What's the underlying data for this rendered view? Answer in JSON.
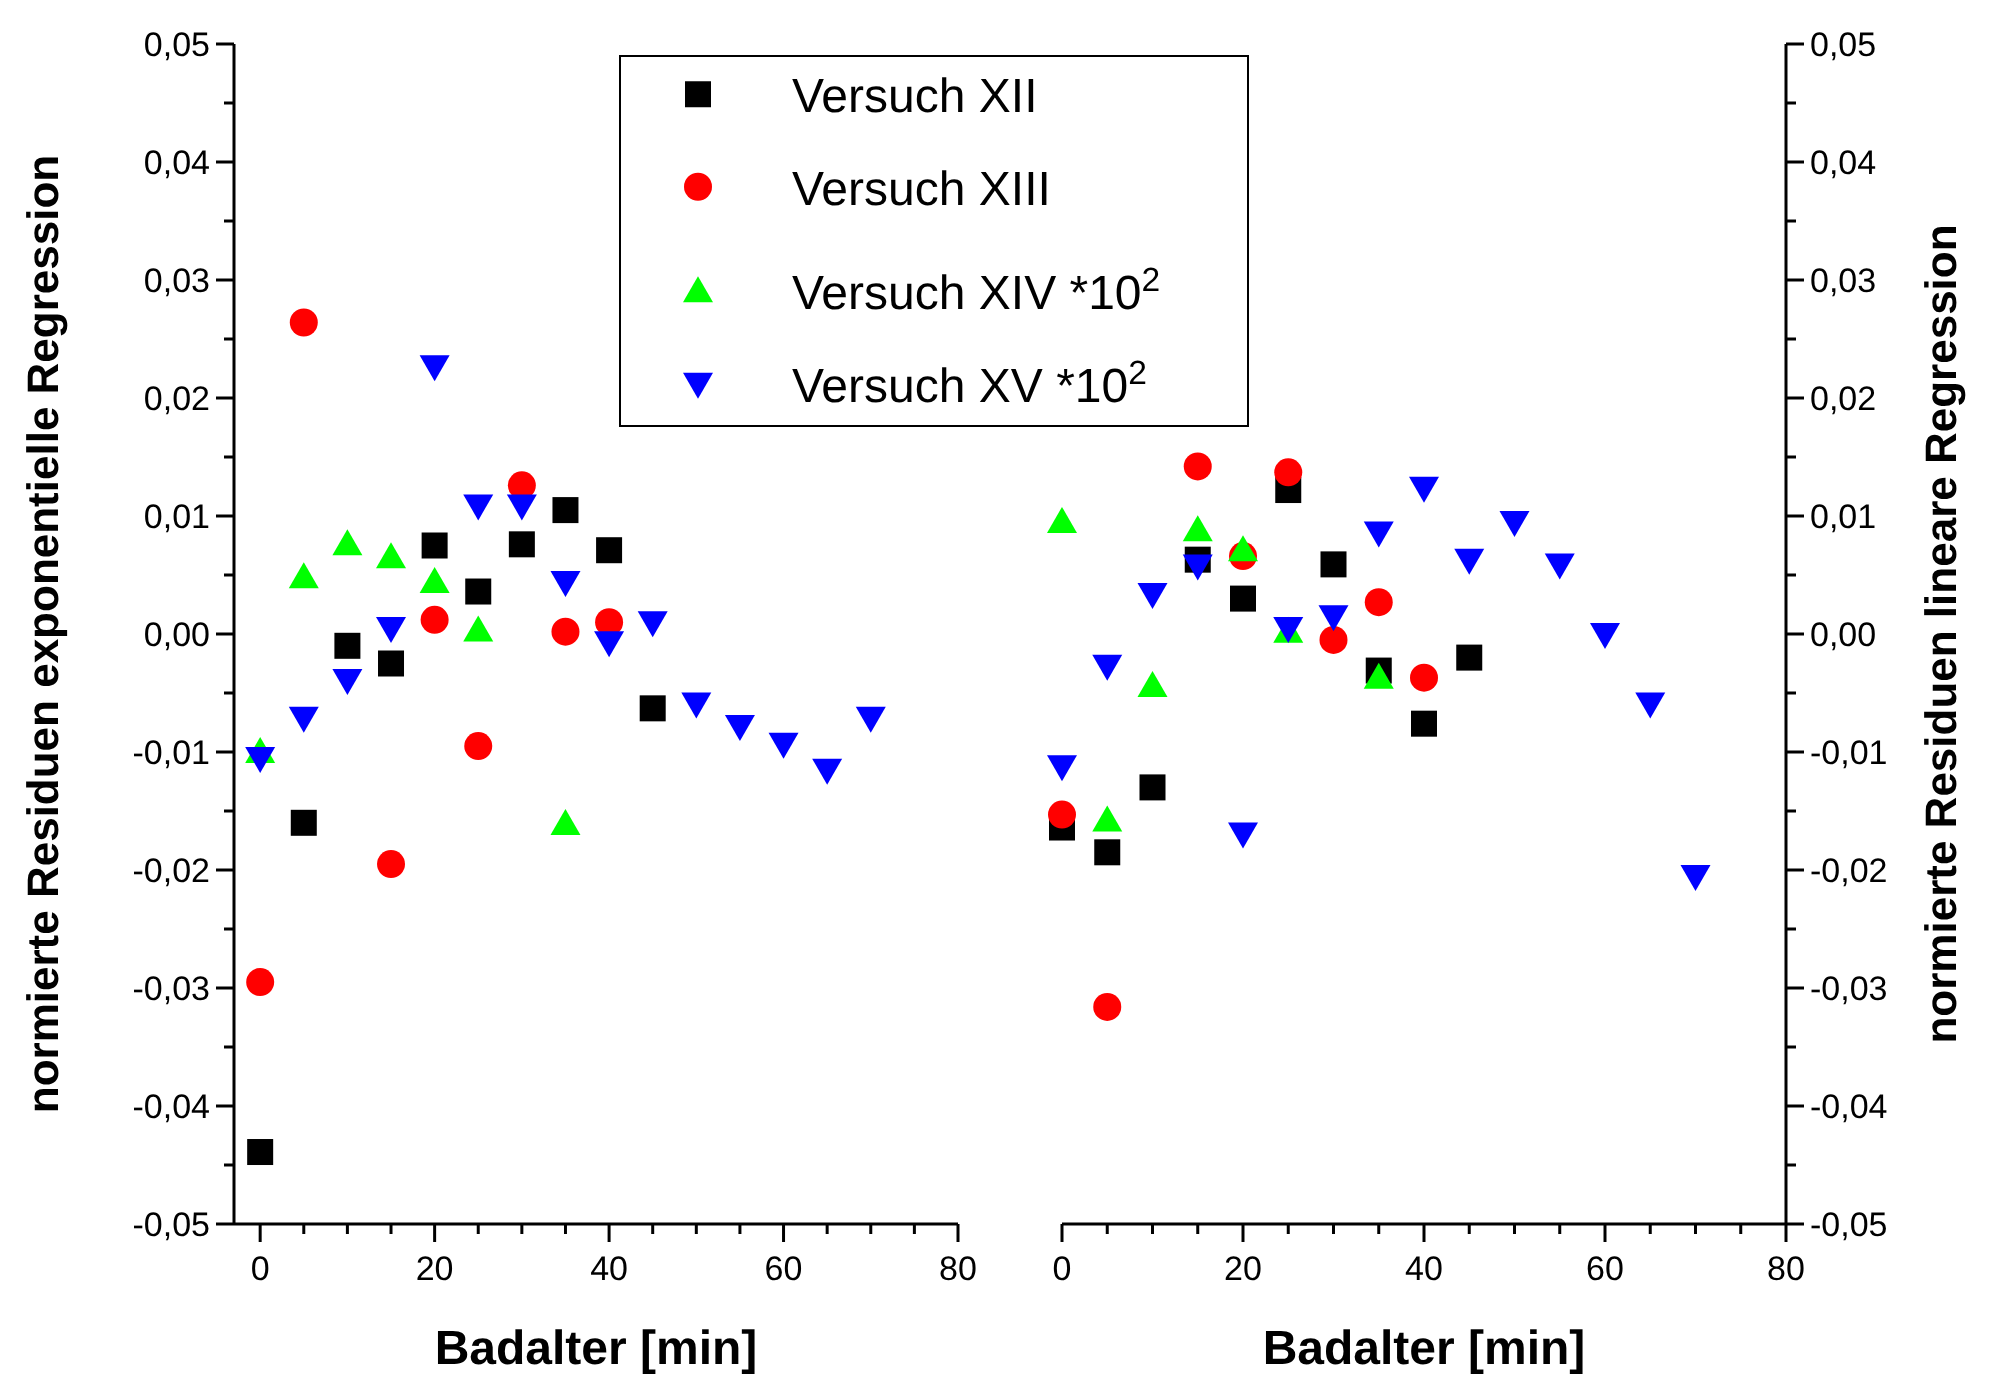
{
  "chart_data": [
    {
      "type": "scatter",
      "xlabel": "Badalter [min]",
      "ylabel": "normierte Residuen exponentielle Regression",
      "xlim": [
        -3,
        80
      ],
      "xticks": [
        0,
        {
          "value": 5,
          "label": null
        },
        {
          "value": 10,
          "label": null
        },
        {
          "value": 15,
          "label": null
        },
        20,
        {
          "value": 25,
          "label": null
        },
        {
          "value": 30,
          "label": null
        },
        {
          "value": 35,
          "label": null
        },
        40,
        {
          "value": 45,
          "label": null
        },
        {
          "value": 50,
          "label": null
        },
        {
          "value": 55,
          "label": null
        },
        60,
        {
          "value": 65,
          "label": null
        },
        {
          "value": 70,
          "label": null
        },
        {
          "value": 75,
          "label": null
        },
        80
      ],
      "ylim": [
        -0.05,
        0.05
      ],
      "yticks": [
        {
          "value": -0.05,
          "label": "-0,05"
        },
        {
          "value": -0.045,
          "label": null
        },
        {
          "value": -0.04,
          "label": "-0,04"
        },
        {
          "value": -0.035,
          "label": null
        },
        {
          "value": -0.03,
          "label": "-0,03"
        },
        {
          "value": -0.025,
          "label": null
        },
        {
          "value": -0.02,
          "label": "-0,02"
        },
        {
          "value": -0.015,
          "label": null
        },
        {
          "value": -0.01,
          "label": "-0,01"
        },
        {
          "value": -0.005,
          "label": null
        },
        {
          "value": 0,
          "label": "0,00"
        },
        {
          "value": 0.005,
          "label": null
        },
        {
          "value": 0.01,
          "label": "0,01"
        },
        {
          "value": 0.015,
          "label": null
        },
        {
          "value": 0.02,
          "label": "0,02"
        },
        {
          "value": 0.025,
          "label": null
        },
        {
          "value": 0.03,
          "label": "0,03"
        },
        {
          "value": 0.035,
          "label": null
        },
        {
          "value": 0.04,
          "label": "0,04"
        },
        {
          "value": 0.045,
          "label": null
        },
        {
          "value": 0.05,
          "label": "0,05"
        }
      ],
      "legend": "top right",
      "grid": false,
      "series": [
        {
          "name": "Versuch XII",
          "color": "#000000",
          "marker": "square",
          "x": [
            0,
            5,
            10,
            15,
            20,
            25,
            30,
            35,
            40,
            45
          ],
          "values": [
            -0.0439,
            -0.016,
            -0.001,
            -0.0025,
            0.0075,
            0.0036,
            0.0076,
            0.0105,
            0.0071,
            -0.0063
          ]
        },
        {
          "name": "Versuch XIII",
          "color": "#ff0000",
          "marker": "circle",
          "x": [
            0,
            5,
            15,
            20,
            25,
            30,
            35,
            40
          ],
          "values": [
            -0.0295,
            0.0264,
            -0.0195,
            0.0012,
            -0.0095,
            0.0126,
            0.0002,
            0.001
          ]
        },
        {
          "name": "Versuch XIV *10$^{2}$",
          "color": "#00ff00",
          "marker": "triangle",
          "x": [
            0,
            5,
            10,
            15,
            20,
            25,
            35
          ],
          "values": [
            -0.01,
            0.0048,
            0.0076,
            0.0065,
            0.0044,
            0.0003,
            -0.0161
          ]
        },
        {
          "name": "Versuch XV *10$^{2}$",
          "color": "#0000ff",
          "marker": "triangle-down",
          "x": [
            0,
            5,
            10,
            15,
            20,
            25,
            30,
            35,
            40,
            45,
            50,
            55,
            60,
            65,
            70
          ],
          "values": [
            -0.0105,
            -0.0071,
            -0.0039,
            0.0005,
            0.0227,
            0.0109,
            0.0109,
            0.0044,
            -0.0007,
            0.001,
            -0.0059,
            -0.0078,
            -0.0093,
            -0.0115,
            -0.0071
          ]
        }
      ]
    },
    {
      "type": "scatter",
      "xlabel": "Badalter [min]",
      "y2label": "normierte Residuen lineare Regression",
      "xlim": [
        0,
        80
      ],
      "xticks": [
        0,
        {
          "value": 5,
          "label": null
        },
        {
          "value": 10,
          "label": null
        },
        {
          "value": 15,
          "label": null
        },
        20,
        {
          "value": 25,
          "label": null
        },
        {
          "value": 30,
          "label": null
        },
        {
          "value": 35,
          "label": null
        },
        40,
        {
          "value": 45,
          "label": null
        },
        {
          "value": 50,
          "label": null
        },
        {
          "value": 55,
          "label": null
        },
        60,
        {
          "value": 65,
          "label": null
        },
        {
          "value": 70,
          "label": null
        },
        {
          "value": 75,
          "label": null
        },
        80
      ],
      "y2lim": [
        -0.05,
        0.05
      ],
      "y2ticks": [
        {
          "value": -0.05,
          "label": "-0,05"
        },
        {
          "value": -0.045,
          "label": null
        },
        {
          "value": -0.04,
          "label": "-0,04"
        },
        {
          "value": -0.035,
          "label": null
        },
        {
          "value": -0.03,
          "label": "-0,03"
        },
        {
          "value": -0.025,
          "label": null
        },
        {
          "value": -0.02,
          "label": "-0,02"
        },
        {
          "value": -0.015,
          "label": null
        },
        {
          "value": -0.01,
          "label": "-0,01"
        },
        {
          "value": -0.005,
          "label": null
        },
        {
          "value": 0,
          "label": "0,00"
        },
        {
          "value": 0.005,
          "label": null
        },
        {
          "value": 0.01,
          "label": "0,01"
        },
        {
          "value": 0.015,
          "label": null
        },
        {
          "value": 0.02,
          "label": "0,02"
        },
        {
          "value": 0.025,
          "label": null
        },
        {
          "value": 0.03,
          "label": "0,03"
        },
        {
          "value": 0.035,
          "label": null
        },
        {
          "value": 0.04,
          "label": "0,04"
        },
        {
          "value": 0.045,
          "label": null
        },
        {
          "value": 0.05,
          "label": "0,05"
        }
      ],
      "grid": false,
      "series": [
        {
          "color": "#000000",
          "marker": "square",
          "axis": "y2",
          "x": [
            0,
            5,
            10,
            15,
            20,
            25,
            30,
            35,
            40,
            45
          ],
          "values": [
            -0.0164,
            -0.0185,
            -0.013,
            0.0063,
            0.003,
            0.0122,
            0.0059,
            -0.0031,
            -0.0076,
            -0.002
          ]
        },
        {
          "color": "#ff0000",
          "marker": "circle",
          "axis": "y2",
          "x": [
            0,
            5,
            15,
            20,
            25,
            30,
            35,
            40
          ],
          "values": [
            -0.0153,
            -0.0316,
            0.0142,
            0.0066,
            0.0137,
            -0.0005,
            0.0027,
            -0.0037
          ]
        },
        {
          "color": "#00ff00",
          "marker": "triangle",
          "axis": "y2",
          "x": [
            0,
            5,
            10,
            15,
            20,
            25,
            35
          ],
          "values": [
            0.0095,
            -0.0158,
            -0.0044,
            0.0088,
            0.0071,
            0.0002,
            -0.0037
          ]
        },
        {
          "color": "#0000ff",
          "marker": "triangle-down",
          "axis": "y2",
          "x": [
            0,
            5,
            10,
            15,
            20,
            25,
            30,
            35,
            40,
            45,
            50,
            55,
            60,
            65,
            70
          ],
          "values": [
            -0.0112,
            -0.0027,
            0.0034,
            0.0058,
            -0.0169,
            0.0005,
            0.0015,
            0.0086,
            0.0124,
            0.0063,
            0.0095,
            0.0059,
            0,
            -0.0059,
            -0.0205
          ]
        }
      ]
    }
  ]
}
